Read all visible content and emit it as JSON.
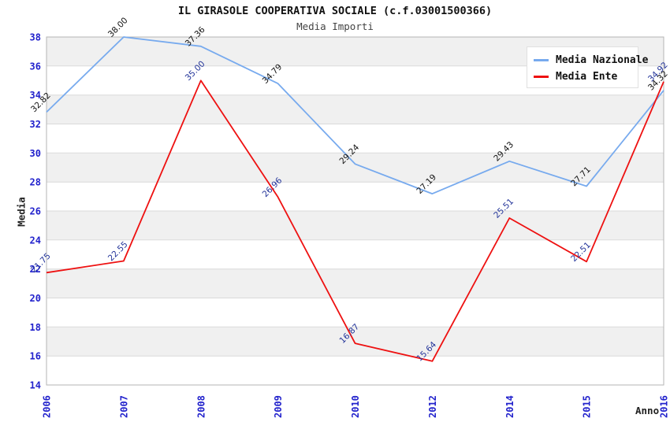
{
  "title": "IL GIRASOLE COOPERATIVA SOCIALE (c.f.03001500366)",
  "subtitle": "Media Importi",
  "chart_data": {
    "type": "line",
    "categories": [
      "2006",
      "2007",
      "2008",
      "2009",
      "2010",
      "2012",
      "2014",
      "2015",
      "2016"
    ],
    "series": [
      {
        "name": "Media Nazionale",
        "color": "#77aaee",
        "label_color": "#111111",
        "values": [
          32.82,
          38.0,
          37.36,
          34.79,
          29.24,
          27.19,
          29.43,
          27.71,
          34.32
        ]
      },
      {
        "name": "Media Ente",
        "color": "#ee1111",
        "label_color": "#223399",
        "values": [
          21.75,
          22.55,
          35.0,
          26.96,
          16.87,
          15.64,
          25.51,
          22.51,
          34.92
        ]
      }
    ],
    "xlabel": "Anno",
    "ylabel": "Media",
    "ylim": [
      14,
      38
    ],
    "ytick_step": 2,
    "legend_position": "top-right",
    "grid": "horizontal-bands"
  },
  "colors": {
    "axis_text": "#2222cc",
    "band_gray": "#f0f0f0",
    "band_white": "#ffffff",
    "grid_line": "#dadada",
    "plot_border": "#b5b5b5"
  }
}
